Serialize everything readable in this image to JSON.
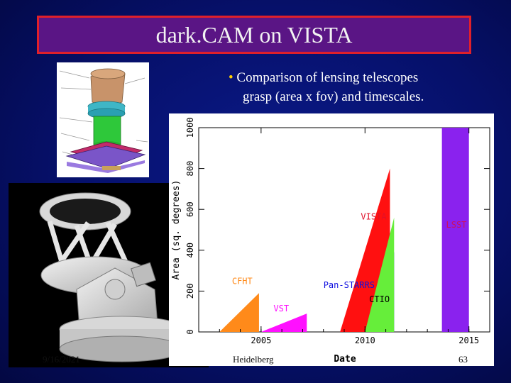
{
  "slide": {
    "title": "dark.CAM on VISTA",
    "bullet_marker": "•",
    "bullet_line1": "Comparison of lensing telescopes",
    "bullet_line2": "grasp (area x fov) and timescales."
  },
  "footer": {
    "date": "9/16/2021",
    "venue": "Heidelberg",
    "page": "63"
  },
  "colors": {
    "background": "#06106a",
    "title_box": "#5a1585",
    "title_border": "#e0202a",
    "bullet": "#ffd000"
  },
  "images": {
    "camera": "dark-cam-render",
    "telescope": "vista-telescope-render"
  },
  "chart_data": {
    "type": "area",
    "xlabel": "Date",
    "ylabel": "Area (sq. degrees)",
    "xlim": [
      2002,
      2016
    ],
    "ylim": [
      0,
      1000
    ],
    "x_ticks": [
      2005,
      2010,
      2015
    ],
    "y_ticks": [
      0,
      200,
      400,
      600,
      800,
      1000
    ],
    "series": [
      {
        "name": "CFHT",
        "color": "#ff8a1a",
        "x": [
          2003.0,
          2004.9,
          2004.9
        ],
        "y": [
          0,
          190,
          0
        ]
      },
      {
        "name": "VST",
        "color": "#ff10ff",
        "x": [
          2005.0,
          2007.2,
          2007.2
        ],
        "y": [
          0,
          90,
          0
        ]
      },
      {
        "name": "Pan-STARRS",
        "color": "#1010e0",
        "x": [
          2008.8,
          2011.4,
          2011.4
        ],
        "y": [
          0,
          390,
          0
        ]
      },
      {
        "name": "VISTA",
        "color": "#ff1010",
        "x": [
          2008.8,
          2011.2,
          2011.2
        ],
        "y": [
          0,
          800,
          0
        ]
      },
      {
        "name": "CTIO",
        "color": "#66ee3a",
        "x": [
          2010.0,
          2011.4,
          2011.4
        ],
        "y": [
          0,
          560,
          0
        ]
      },
      {
        "name": "LSST",
        "color": "#8a22ee",
        "x": [
          2013.7,
          2013.7,
          2015.0,
          2015.0
        ],
        "y": [
          0,
          1000,
          1000,
          0
        ]
      }
    ]
  }
}
